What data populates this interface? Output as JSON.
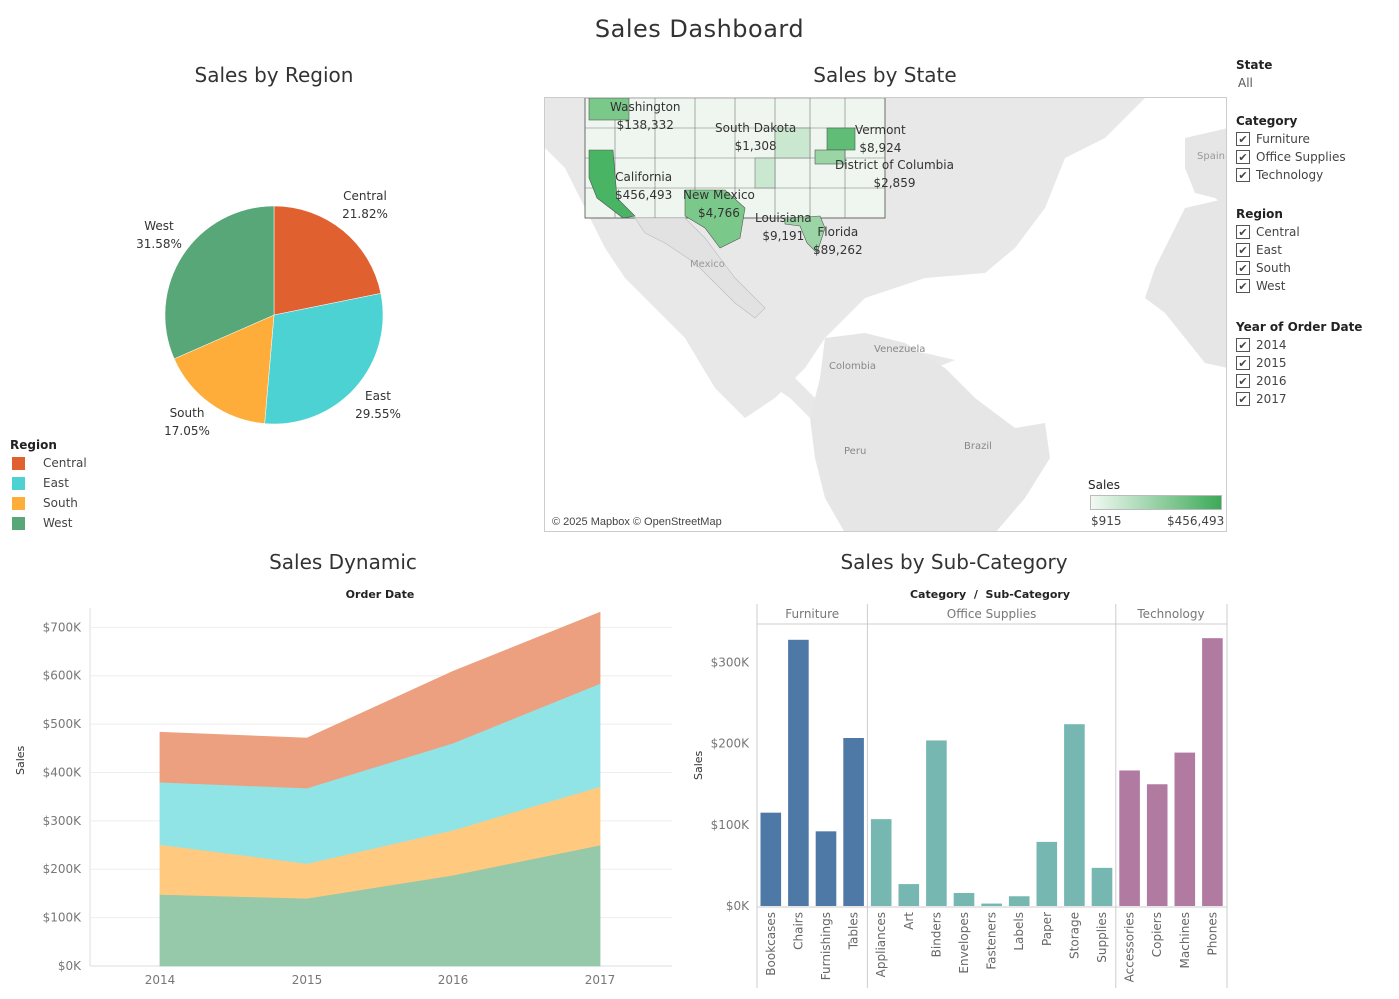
{
  "dashboard": {
    "title": "Sales Dashboard"
  },
  "pie": {
    "title": "Sales by Region",
    "legend_title": "Region",
    "slices": [
      {
        "name": "Central",
        "pct": "21.82%",
        "value": 21.82,
        "color": "#e06030"
      },
      {
        "name": "East",
        "pct": "29.55%",
        "value": 29.55,
        "color": "#4dd2d4"
      },
      {
        "name": "South",
        "pct": "17.05%",
        "value": 17.05,
        "color": "#ffad3a"
      },
      {
        "name": "West",
        "pct": "31.58%",
        "value": 31.58,
        "color": "#57a778"
      }
    ]
  },
  "map": {
    "title": "Sales by State",
    "attribution": "© 2025 Mapbox © OpenStreetMap",
    "legend": {
      "title": "Sales",
      "min": "$915",
      "max": "$456,493"
    },
    "state_labels": [
      {
        "name": "Washington",
        "value": "$138,332"
      },
      {
        "name": "South Dakota",
        "value": "$1,308"
      },
      {
        "name": "Vermont",
        "value": "$8,924"
      },
      {
        "name": "District of Columbia",
        "value": "$2,859"
      },
      {
        "name": "California",
        "value": "$456,493"
      },
      {
        "name": "New Mexico",
        "value": "$4,766"
      },
      {
        "name": "Louisiana",
        "value": "$9,191"
      },
      {
        "name": "Florida",
        "value": "$89,262"
      }
    ],
    "places": [
      "Spain",
      "Mexico",
      "Venezuela",
      "Colombia",
      "Peru",
      "Brazil"
    ]
  },
  "filters": {
    "state": {
      "label": "State",
      "value": "All"
    },
    "category": {
      "label": "Category",
      "items": [
        "Furniture",
        "Office Supplies",
        "Technology"
      ]
    },
    "region": {
      "label": "Region",
      "items": [
        "Central",
        "East",
        "South",
        "West"
      ]
    },
    "year": {
      "label": "Year of Order Date",
      "items": [
        "2014",
        "2015",
        "2016",
        "2017"
      ]
    }
  },
  "area_chart": {
    "title": "Sales Dynamic",
    "top_label": "Order Date",
    "ylabel": "Sales",
    "y_ticks": [
      "$0K",
      "$100K",
      "$200K",
      "$300K",
      "$400K",
      "$500K",
      "$600K",
      "$700K"
    ],
    "chart_data": {
      "type": "area",
      "x": [
        "2014",
        "2015",
        "2016",
        "2017"
      ],
      "stacked": true,
      "ylim": [
        0,
        740000
      ],
      "series": [
        {
          "name": "West",
          "color": "#96c8aa",
          "values": [
            148000,
            140000,
            188000,
            250000
          ]
        },
        {
          "name": "South",
          "color": "#ffca80",
          "values": [
            103000,
            72000,
            93000,
            121000
          ]
        },
        {
          "name": "East",
          "color": "#90e4e5",
          "values": [
            129000,
            156000,
            180000,
            213000
          ]
        },
        {
          "name": "Central",
          "color": "#eda07f",
          "values": [
            103000,
            103000,
            148000,
            147000
          ]
        }
      ]
    }
  },
  "bar_chart": {
    "title": "Sales by Sub-Category",
    "top_label": "Category  /  Sub-Category",
    "ylabel": "Sales",
    "y_ticks": [
      "$0K",
      "$100K",
      "$200K",
      "$300K"
    ],
    "chart_data": {
      "type": "bar",
      "ylim": [
        0,
        345000
      ],
      "groups": [
        {
          "name": "Furniture",
          "color": "#4e79a7",
          "categories": [
            "Bookcases",
            "Chairs",
            "Furnishings",
            "Tables"
          ],
          "values": [
            115000,
            328000,
            92000,
            207000
          ]
        },
        {
          "name": "Office Supplies",
          "color": "#76b7b2",
          "categories": [
            "Appliances",
            "Art",
            "Binders",
            "Envelopes",
            "Fasteners",
            "Labels",
            "Paper",
            "Storage",
            "Supplies"
          ],
          "values": [
            107000,
            27000,
            204000,
            16000,
            3000,
            12000,
            79000,
            224000,
            47000
          ]
        },
        {
          "name": "Technology",
          "color": "#b07aa1",
          "categories": [
            "Accessories",
            "Copiers",
            "Machines",
            "Phones"
          ],
          "values": [
            167000,
            150000,
            189000,
            330000
          ]
        }
      ]
    }
  }
}
